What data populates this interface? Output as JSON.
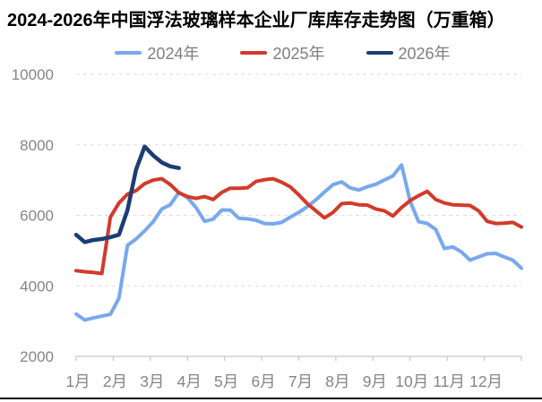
{
  "chart_data": {
    "type": "line",
    "title": "2024-2026年中国浮法玻璃样本企业厂库库存走势图（万重箱）",
    "unit": "万重箱",
    "frequency": "weekly",
    "legend_position": "top",
    "grid": "horizontal-dashed",
    "x_axis": {
      "categories": [
        "1月",
        "2月",
        "3月",
        "4月",
        "5月",
        "6月",
        "7月",
        "8月",
        "9月",
        "10月",
        "11月",
        "12月"
      ],
      "weeks_per_year": 53
    },
    "y_axis": {
      "min": 2000,
      "max": 10000,
      "ticks": [
        2000,
        4000,
        6000,
        8000,
        10000
      ]
    },
    "colors": {
      "grid_line": "#dddddd",
      "axis_line": "#c8c8c8",
      "axis_text": "#858585",
      "title_text": "#000000",
      "legend_text": "#7f7f7f",
      "background": "#ffffff"
    },
    "series": [
      {
        "name": "2024年",
        "color": "#78a8ee",
        "line_width": 4,
        "values": [
          3200,
          3030,
          3090,
          3140,
          3190,
          3650,
          5150,
          5330,
          5560,
          5820,
          6180,
          6300,
          6650,
          6500,
          6220,
          5830,
          5890,
          6150,
          6150,
          5920,
          5900,
          5860,
          5770,
          5760,
          5800,
          5950,
          6080,
          6250,
          6440,
          6660,
          6870,
          6950,
          6780,
          6720,
          6810,
          6880,
          7000,
          7120,
          7430,
          6400,
          5820,
          5770,
          5600,
          5060,
          5100,
          4960,
          4730,
          4820,
          4910,
          4920,
          4820,
          4730,
          4500
        ]
      },
      {
        "name": "2025年",
        "color": "#d23a2a",
        "line_width": 4,
        "values": [
          4430,
          4400,
          4380,
          4350,
          5950,
          6350,
          6600,
          6700,
          6900,
          7000,
          7040,
          6870,
          6640,
          6530,
          6480,
          6530,
          6450,
          6650,
          6770,
          6770,
          6780,
          6960,
          7010,
          7040,
          6940,
          6810,
          6580,
          6330,
          6130,
          5930,
          6080,
          6330,
          6350,
          6300,
          6290,
          6180,
          6130,
          5980,
          6220,
          6420,
          6560,
          6680,
          6450,
          6350,
          6300,
          6290,
          6280,
          6130,
          5830,
          5770,
          5780,
          5800,
          5670
        ]
      },
      {
        "name": "2026年",
        "color": "#1b3d73",
        "line_width": 4.5,
        "values": [
          5450,
          5240,
          5300,
          5330,
          5380,
          5450,
          6150,
          7300,
          7950,
          7700,
          7500,
          7390,
          7340
        ]
      }
    ]
  }
}
